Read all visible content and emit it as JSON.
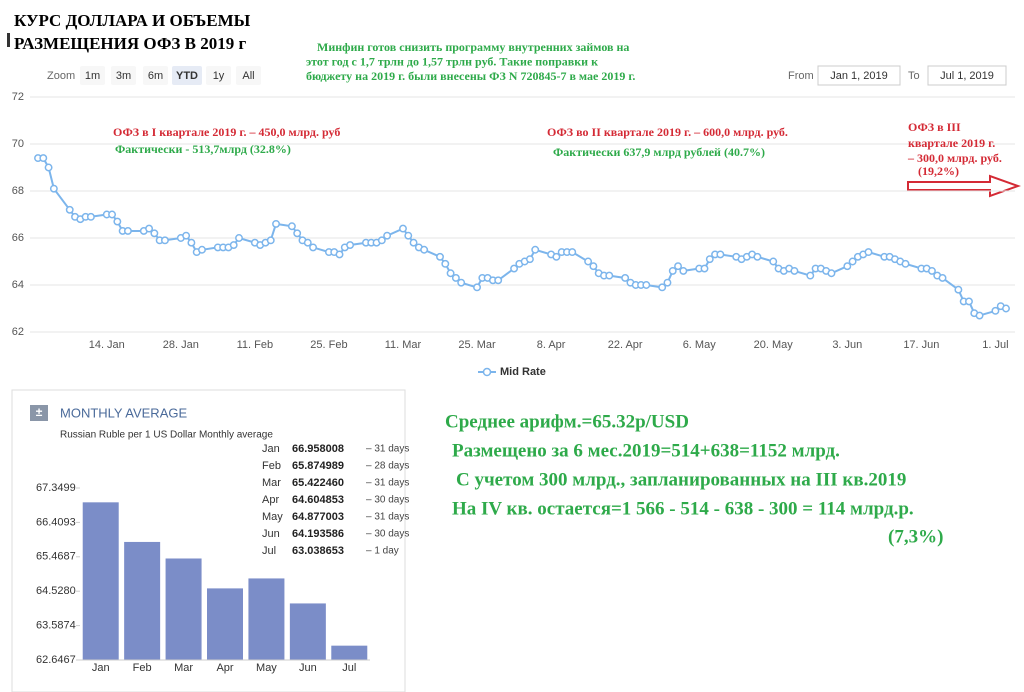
{
  "title_lines": [
    "КУРС ДОЛЛАРА И ОБЪЕМЫ",
    "РАЗМЕЩЕНИЯ ОФЗ В 2019 г"
  ],
  "note_lines": [
    "Минфин готов снизить программу внутренних займов на",
    "этот год с 1,7 трлн до 1,57 трлн руб. Такие поправки к",
    "бюджету на 2019 г. были внесены ФЗ N 720845-7 в мае 2019 г."
  ],
  "summary_lines": [
    "Среднее арифм.=65.32р/USD",
    "Размещено за 6 мес.2019=514+638=1152 млрд.",
    "С учетом 300 млрд., запланированных на III кв.2019",
    "На IV кв. остается=1 566 - 514 - 638 - 300 = 114 млрд.р.",
    "(7,3%)"
  ],
  "chart_data": [
    {
      "type": "line",
      "zoom_label": "Zoom",
      "zoom_buttons": [
        "1m",
        "3m",
        "6m",
        "YTD",
        "1y",
        "All"
      ],
      "zoom_selected": "YTD",
      "from_label": "From",
      "from_value": "Jan 1, 2019",
      "to_label": "To",
      "to_value": "Jul 1, 2019",
      "annotations": [
        {
          "text": "ОФЗ в I квартале 2019 г. – 450,0 млрд. руб",
          "color": "#d42a35"
        },
        {
          "text": "Фактически - 513,7млрд (32.8%)",
          "color": "#2eaa4a"
        },
        {
          "text": "ОФЗ во II квартале 2019 г. – 600,0 млрд. руб.",
          "color": "#d42a35"
        },
        {
          "text": "Фактически 637,9 млрд рублей (40.7%)",
          "color": "#2eaa4a"
        },
        {
          "text": "ОФЗ в III",
          "color": "#d42a35"
        },
        {
          "text": "квартале 2019 г.",
          "color": "#d42a35"
        },
        {
          "text": "– 300,0 млрд. руб.",
          "color": "#d42a35"
        },
        {
          "text": "(19,2%)",
          "color": "#d42a35"
        }
      ],
      "x": [
        "1. Jan",
        "2. Jan",
        "3. Jan",
        "4. Jan",
        "7. Jan",
        "8. Jan",
        "9. Jan",
        "10. Jan",
        "11. Jan",
        "14. Jan",
        "15. Jan",
        "16. Jan",
        "17. Jan",
        "18. Jan",
        "21. Jan",
        "22. Jan",
        "23. Jan",
        "24. Jan",
        "25. Jan",
        "28. Jan",
        "29. Jan",
        "30. Jan",
        "31. Jan",
        "1. Feb",
        "4. Feb",
        "5. Feb",
        "6. Feb",
        "7. Feb",
        "8. Feb",
        "11. Feb",
        "12. Feb",
        "13. Feb",
        "14. Feb",
        "15. Feb",
        "18. Feb",
        "19. Feb",
        "20. Feb",
        "21. Feb",
        "22. Feb",
        "25. Feb",
        "26. Feb",
        "27. Feb",
        "28. Feb",
        "1. Mar",
        "4. Mar",
        "5. Mar",
        "6. Mar",
        "7. Mar",
        "8. Mar",
        "11. Mar",
        "12. Mar",
        "13. Mar",
        "14. Mar",
        "15. Mar",
        "18. Mar",
        "19. Mar",
        "20. Mar",
        "21. Mar",
        "22. Mar",
        "25. Mar",
        "26. Mar",
        "27. Mar",
        "28. Mar",
        "29. Mar",
        "1. Apr",
        "2. Apr",
        "3. Apr",
        "4. Apr",
        "5. Apr",
        "8. Apr",
        "9. Apr",
        "10. Apr",
        "11. Apr",
        "12. Apr",
        "15. Apr",
        "16. Apr",
        "17. Apr",
        "18. Apr",
        "19. Apr",
        "22. Apr",
        "23. Apr",
        "24. Apr",
        "25. Apr",
        "26. Apr",
        "29. Apr",
        "30. Apr",
        "1. May",
        "2. May",
        "3. May",
        "6. May",
        "7. May",
        "8. May",
        "9. May",
        "10. May",
        "13. May",
        "14. May",
        "15. May",
        "16. May",
        "17. May",
        "20. May",
        "21. May",
        "22. May",
        "23. May",
        "24. May",
        "27. May",
        "28. May",
        "29. May",
        "30. May",
        "31. May",
        "3. Jun",
        "4. Jun",
        "5. Jun",
        "6. Jun",
        "7. Jun",
        "10. Jun",
        "11. Jun",
        "12. Jun",
        "13. Jun",
        "14. Jun",
        "17. Jun",
        "18. Jun",
        "19. Jun",
        "20. Jun",
        "21. Jun",
        "24. Jun",
        "25. Jun",
        "26. Jun",
        "27. Jun",
        "28. Jun",
        "1. Jul",
        "2. Jul",
        "3. Jul"
      ],
      "series": [
        {
          "name": "Mid Rate",
          "color": "#7cb5ec",
          "values": [
            69.4,
            69.4,
            69.0,
            68.1,
            67.2,
            66.9,
            66.8,
            66.9,
            66.9,
            67.0,
            67.0,
            66.7,
            66.3,
            66.3,
            66.3,
            66.4,
            66.2,
            65.9,
            65.9,
            66.0,
            66.1,
            65.8,
            65.4,
            65.5,
            65.6,
            65.6,
            65.6,
            65.7,
            66.0,
            65.8,
            65.7,
            65.8,
            65.9,
            66.6,
            66.5,
            66.2,
            65.9,
            65.8,
            65.6,
            65.4,
            65.4,
            65.3,
            65.6,
            65.7,
            65.8,
            65.8,
            65.8,
            65.9,
            66.1,
            66.4,
            66.1,
            65.8,
            65.6,
            65.5,
            65.2,
            64.9,
            64.5,
            64.3,
            64.1,
            63.9,
            64.3,
            64.3,
            64.2,
            64.2,
            64.7,
            64.9,
            65.0,
            65.1,
            65.5,
            65.3,
            65.2,
            65.4,
            65.4,
            65.4,
            65.0,
            64.8,
            64.5,
            64.4,
            64.4,
            64.3,
            64.1,
            64.0,
            64.0,
            64.0,
            63.9,
            64.1,
            64.6,
            64.8,
            64.6,
            64.7,
            64.7,
            65.1,
            65.3,
            65.3,
            65.2,
            65.1,
            65.2,
            65.3,
            65.2,
            65.0,
            64.7,
            64.6,
            64.7,
            64.6,
            64.4,
            64.7,
            64.7,
            64.6,
            64.5,
            64.8,
            65.0,
            65.2,
            65.3,
            65.4,
            65.2,
            65.2,
            65.1,
            65.0,
            64.9,
            64.7,
            64.7,
            64.6,
            64.4,
            64.3,
            63.8,
            63.3,
            63.3,
            62.8,
            62.7,
            62.9,
            63.1,
            63.0
          ]
        }
      ],
      "xlim": [
        "1. Jan",
        "3. Jul"
      ],
      "xticks": [
        "14. Jan",
        "28. Jan",
        "11. Feb",
        "25. Feb",
        "11. Mar",
        "25. Mar",
        "8. Apr",
        "22. Apr",
        "6. May",
        "20. May",
        "3. Jun",
        "17. Jun",
        "1. Jul"
      ],
      "ylim": [
        62,
        72
      ],
      "yticks": [
        62,
        64,
        66,
        68,
        70,
        72
      ],
      "grid": true
    },
    {
      "type": "bar",
      "title": "MONTHLY AVERAGE",
      "subtitle": "Russian Ruble per 1 US Dollar Monthly average",
      "categories": [
        "Jan",
        "Feb",
        "Mar",
        "Apr",
        "May",
        "Jun",
        "Jul"
      ],
      "values": [
        66.958008,
        65.874989,
        65.42246,
        64.604853,
        64.877003,
        64.193586,
        63.038653
      ],
      "value_labels": [
        "66.958008",
        "65.874989",
        "65.422460",
        "64.604853",
        "64.877003",
        "64.193586",
        "63.038653"
      ],
      "period_labels": [
        "– 31 days",
        "– 28 days",
        "– 31 days",
        "– 30 days",
        "– 31 days",
        "– 30 days",
        "– 1 day"
      ],
      "color": "#7b8dc8",
      "ylim": [
        62.6467,
        67.3499
      ],
      "yticks": [
        62.6467,
        63.5874,
        {
          "value": 64.528,
          "label": "64.5280"
        },
        65.4687,
        66.4093,
        67.3499
      ],
      "grid": false
    }
  ]
}
